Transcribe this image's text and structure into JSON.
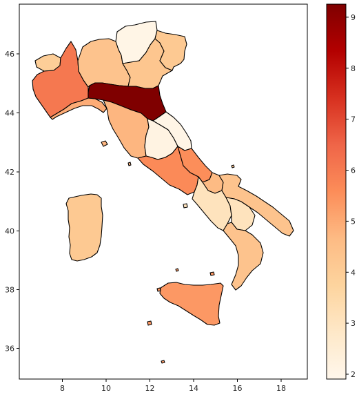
{
  "chart_data": {
    "type": "choropleth",
    "title": "",
    "xlabel": "",
    "ylabel": "",
    "xlim": [
      6.2,
      19.2
    ],
    "ylim": [
      34.9,
      47.5
    ],
    "x_ticks": [
      "8",
      "10",
      "12",
      "14",
      "16",
      "18"
    ],
    "y_ticks": [
      "36",
      "38",
      "40",
      "42",
      "44",
      "46"
    ],
    "colorbar": {
      "colormap": "OrRd",
      "range": [
        1.85,
        9.2
      ],
      "ticks": [
        "2",
        "3",
        "4",
        "5",
        "6",
        "7",
        "8",
        "9"
      ],
      "colors": [
        "#fff7ec",
        "#fee8c8",
        "#fdd49e",
        "#fdbb84",
        "#fc8d59",
        "#ef6548",
        "#d7301f",
        "#b30000",
        "#7f0000"
      ]
    },
    "regions": [
      {
        "name": "Valle d'Aosta",
        "value": 3.9
      },
      {
        "name": "Piemonte",
        "value": 6.0
      },
      {
        "name": "Liguria",
        "value": 4.9
      },
      {
        "name": "Lombardia",
        "value": 4.3
      },
      {
        "name": "Trentino-Alto Adige",
        "value": 2.0
      },
      {
        "name": "Veneto",
        "value": 4.2
      },
      {
        "name": "Friuli-Venezia Giulia",
        "value": 4.1
      },
      {
        "name": "Emilia-Romagna",
        "value": 9.2
      },
      {
        "name": "Toscana",
        "value": 4.7
      },
      {
        "name": "Umbria",
        "value": 2.1
      },
      {
        "name": "Marche",
        "value": 2.0
      },
      {
        "name": "Lazio",
        "value": 5.6
      },
      {
        "name": "Abruzzo",
        "value": 5.5
      },
      {
        "name": "Molise",
        "value": 4.6
      },
      {
        "name": "Campania",
        "value": 3.0
      },
      {
        "name": "Puglia",
        "value": 4.3
      },
      {
        "name": "Basilicata",
        "value": 3.0
      },
      {
        "name": "Calabria",
        "value": 4.3
      },
      {
        "name": "Sicilia",
        "value": 5.3
      },
      {
        "name": "Sardegna",
        "value": 4.1
      }
    ]
  }
}
